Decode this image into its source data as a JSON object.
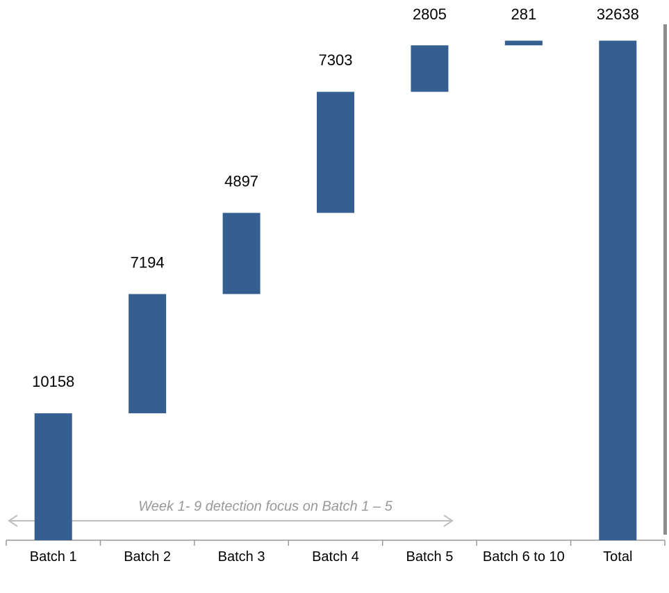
{
  "chart_data": {
    "type": "waterfall",
    "categories": [
      "Batch 1",
      "Batch 2",
      "Batch 3",
      "Batch 4",
      "Batch 5",
      "Batch 6 to 10",
      "Total"
    ],
    "values": [
      10158,
      7194,
      4897,
      7303,
      2805,
      281,
      32638
    ],
    "total_index": 6,
    "color": "#355f91",
    "ylim": [
      2500,
      33500
    ],
    "annotation": "Week 1- 9 detection focus on Batch 1 – 5"
  }
}
